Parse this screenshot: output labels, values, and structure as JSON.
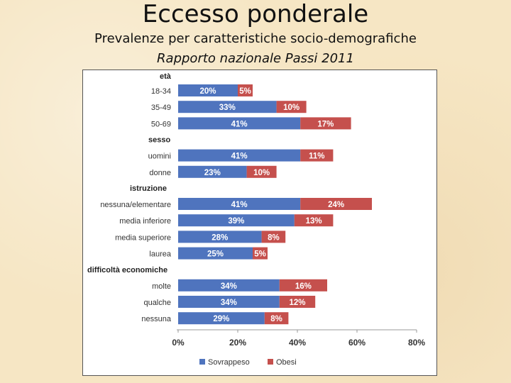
{
  "title": "Eccesso ponderale",
  "subtitle": "Prevalenze per caratteristiche socio-demografiche",
  "subtitle2": "Rapporto nazionale Passi 2011",
  "chart_data": {
    "type": "bar",
    "orientation": "horizontal-stacked",
    "xlim": [
      0,
      80
    ],
    "x_ticks": [
      "0%",
      "20%",
      "40%",
      "60%",
      "80%"
    ],
    "grid": false,
    "legend_position": "bottom",
    "colors": {
      "sovrappeso": "#4f74be",
      "obesi": "#c5504d"
    },
    "series": [
      {
        "name": "Sovrappeso",
        "key": "sovrappeso"
      },
      {
        "name": "Obesi",
        "key": "obesi"
      }
    ],
    "groups": [
      {
        "header": "età",
        "items": [
          {
            "label": "18-34",
            "sovrappeso": 20,
            "obesi": 5,
            "sovrappeso_label": "20%",
            "obesi_label": "5%"
          },
          {
            "label": "35-49",
            "sovrappeso": 33,
            "obesi": 10,
            "sovrappeso_label": "33%",
            "obesi_label": "10%"
          },
          {
            "label": "50-69",
            "sovrappeso": 41,
            "obesi": 17,
            "sovrappeso_label": "41%",
            "obesi_label": "17%"
          }
        ]
      },
      {
        "header": "sesso",
        "items": [
          {
            "label": "uomini",
            "sovrappeso": 41,
            "obesi": 11,
            "sovrappeso_label": "41%",
            "obesi_label": "11%"
          },
          {
            "label": "donne",
            "sovrappeso": 23,
            "obesi": 10,
            "sovrappeso_label": "23%",
            "obesi_label": "10%"
          }
        ]
      },
      {
        "header": "istruzione",
        "items": [
          {
            "label": "nessuna/elementare",
            "sovrappeso": 41,
            "obesi": 24,
            "sovrappeso_label": "41%",
            "obesi_label": "24%"
          },
          {
            "label": "media inferiore",
            "sovrappeso": 39,
            "obesi": 13,
            "sovrappeso_label": "39%",
            "obesi_label": "13%"
          },
          {
            "label": "media superiore",
            "sovrappeso": 28,
            "obesi": 8,
            "sovrappeso_label": "28%",
            "obesi_label": "8%"
          },
          {
            "label": "laurea",
            "sovrappeso": 25,
            "obesi": 5,
            "sovrappeso_label": "25%",
            "obesi_label": "5%"
          }
        ]
      },
      {
        "header": "difficoltà economiche",
        "items": [
          {
            "label": "molte",
            "sovrappeso": 34,
            "obesi": 16,
            "sovrappeso_label": "34%",
            "obesi_label": "16%"
          },
          {
            "label": "qualche",
            "sovrappeso": 34,
            "obesi": 12,
            "sovrappeso_label": "34%",
            "obesi_label": "12%"
          },
          {
            "label": "nessuna",
            "sovrappeso": 29,
            "obesi": 8,
            "sovrappeso_label": "29%",
            "obesi_label": "8%"
          }
        ]
      }
    ]
  }
}
